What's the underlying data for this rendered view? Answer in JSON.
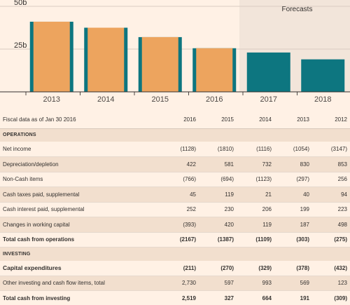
{
  "chart_data": {
    "type": "bar",
    "categories": [
      "2013",
      "2014",
      "2015",
      "2016",
      "2017",
      "2018"
    ],
    "values": [
      41,
      37.5,
      32,
      25.5,
      23,
      19
    ],
    "forecast": [
      false,
      false,
      false,
      false,
      true,
      true
    ],
    "forecast_label": "Forecasts",
    "yticks": [
      "50b",
      "25b"
    ],
    "ytick_values": [
      50,
      25
    ],
    "ylim": [
      0,
      50
    ],
    "colors": {
      "actual_bar": "#eda45e",
      "actual_edge": "#0d7680",
      "forecast_bar": "#0d7680",
      "forecast_bg": "#f2e5da"
    }
  },
  "table": {
    "header_label": "Fiscal data as of Jan 30 2016",
    "years": [
      "2016",
      "2015",
      "2014",
      "2013",
      "2012"
    ],
    "sections": [
      {
        "title": "OPERATIONS",
        "rows": [
          {
            "label": "Net income",
            "values": [
              "(1128)",
              "(1810)",
              "(1116)",
              "(1054)",
              "(3147)"
            ],
            "style": "normal"
          },
          {
            "label": "Depreciation/depletion",
            "values": [
              "422",
              "581",
              "732",
              "830",
              "853"
            ],
            "style": "normal"
          },
          {
            "label": "Non-Cash items",
            "values": [
              "(766)",
              "(694)",
              "(1123)",
              "(297)",
              "256"
            ],
            "style": "normal"
          },
          {
            "label": "Cash taxes paid, supplemental",
            "values": [
              "45",
              "119",
              "21",
              "40",
              "94"
            ],
            "style": "normal"
          },
          {
            "label": "Cash interest paid, supplemental",
            "values": [
              "252",
              "230",
              "206",
              "199",
              "223"
            ],
            "style": "normal"
          },
          {
            "label": "Changes in working capital",
            "values": [
              "(393)",
              "420",
              "119",
              "187",
              "498"
            ],
            "style": "normal"
          },
          {
            "label": "Total cash from operations",
            "values": [
              "(2167)",
              "(1387)",
              "(1109)",
              "(303)",
              "(275)"
            ],
            "style": "total"
          }
        ]
      },
      {
        "title": "INVESTING",
        "rows": [
          {
            "label": "Capital expenditures",
            "values": [
              "(211)",
              "(270)",
              "(329)",
              "(378)",
              "(432)"
            ],
            "style": "emph"
          },
          {
            "label": "Other investing and cash flow items, total",
            "values": [
              "2,730",
              "597",
              "993",
              "569",
              "123"
            ],
            "style": "normal"
          },
          {
            "label": "Total cash from investing",
            "values": [
              "2,519",
              "327",
              "664",
              "191",
              "(309)"
            ],
            "style": "total"
          }
        ]
      }
    ]
  }
}
